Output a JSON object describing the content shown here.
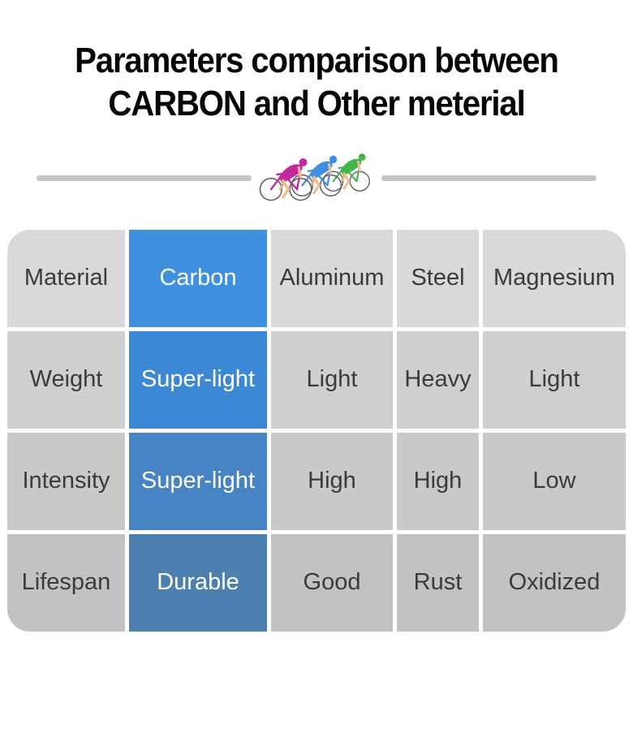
{
  "title": {
    "line1": "Parameters comparison between",
    "line2": "CARBON and Other meterial"
  },
  "divider": {
    "bar_color": "#c3c6c9",
    "icon": "cyclists-racing-icon",
    "cyclist_colors": [
      "#c3289b",
      "#3f8fde",
      "#41b649"
    ],
    "skin_color": "#f1bd90",
    "wheel_color": "#5a5a5a"
  },
  "table": {
    "highlight_column": "Carbon",
    "rows": [
      [
        "Material",
        "Carbon",
        "Aluminum",
        "Steel",
        "Magnesium"
      ],
      [
        "Weight",
        "Super-light",
        "Light",
        "Heavy",
        "Light"
      ],
      [
        "Intensity",
        "Super-light",
        "High",
        "High",
        "Low"
      ],
      [
        "Lifespan",
        "Durable",
        "Good",
        "Rust",
        "Oxidized"
      ]
    ],
    "colors": {
      "highlight_by_row": [
        "#3f90de",
        "#3d88d4",
        "#4684c3",
        "#4b80b1"
      ],
      "gray_by_row": [
        "#d9d9d9",
        "#cfcfcf",
        "#c9c9c9",
        "#c2c2c2"
      ],
      "text_dark": "#3b3b3b",
      "text_light": "#ffffff"
    }
  },
  "chart_data": {
    "type": "table",
    "title": "Parameters comparison between CARBON and Other meterial",
    "columns": [
      "Material",
      "Carbon",
      "Aluminum",
      "Steel",
      "Magnesium"
    ],
    "rows": [
      {
        "parameter": "Weight",
        "Carbon": "Super-light",
        "Aluminum": "Light",
        "Steel": "Heavy",
        "Magnesium": "Light"
      },
      {
        "parameter": "Intensity",
        "Carbon": "Super-light",
        "Aluminum": "High",
        "Steel": "High",
        "Magnesium": "Low"
      },
      {
        "parameter": "Lifespan",
        "Carbon": "Durable",
        "Aluminum": "Good",
        "Steel": "Rust",
        "Magnesium": "Oxidized"
      }
    ],
    "highlighted_column": "Carbon",
    "legend_position": "none",
    "grid": "off"
  }
}
